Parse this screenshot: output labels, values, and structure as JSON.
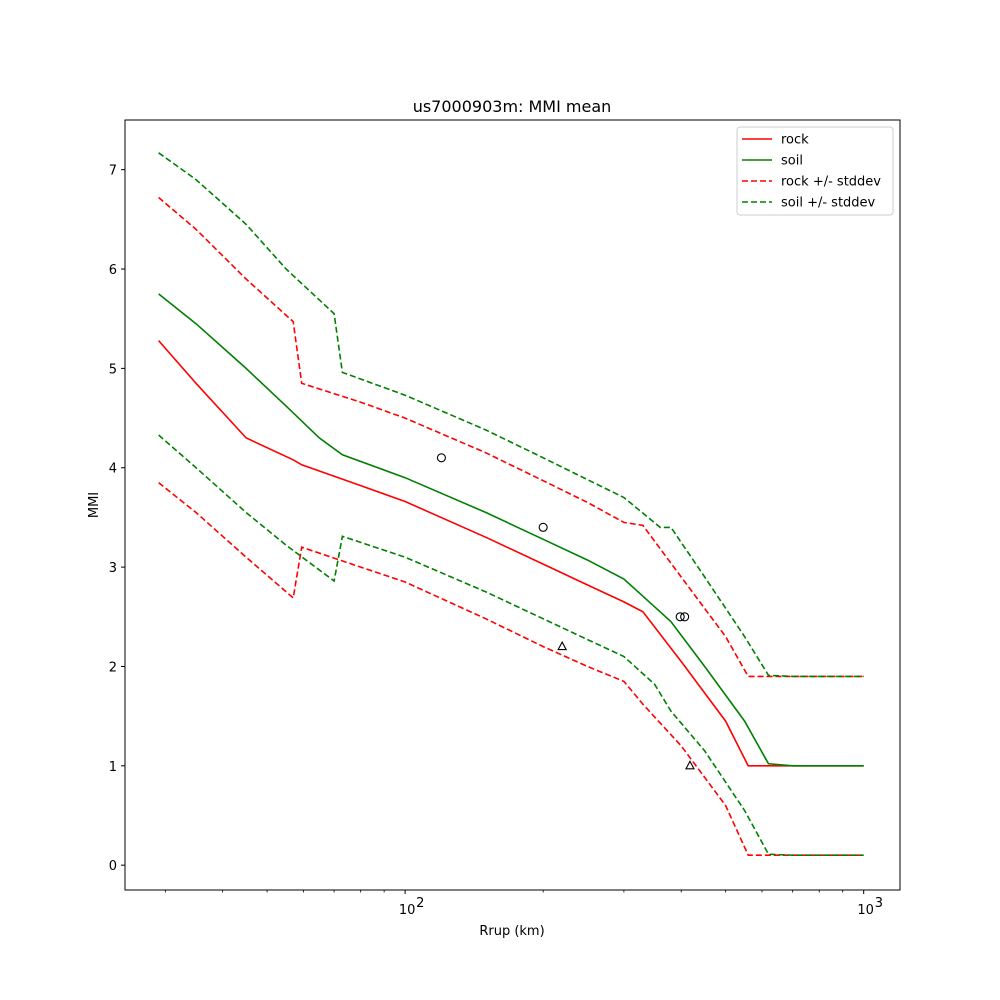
{
  "chart_data": {
    "type": "line",
    "title": "us7000903m: MMI mean",
    "xlabel": "Rrup (km)",
    "ylabel": "MMI",
    "xscale": "log",
    "xlim": [
      24.5,
      1200
    ],
    "ylim": [
      -0.25,
      7.5
    ],
    "x_tick_labels": [
      {
        "base": "10",
        "exp": "2",
        "value": 100
      },
      {
        "base": "10",
        "exp": "3",
        "value": 1000
      }
    ],
    "y_ticks": [
      "0",
      "1",
      "2",
      "3",
      "4",
      "5",
      "6",
      "7"
    ],
    "grid": false,
    "legend_position": "top-right",
    "series": [
      {
        "name": "rock",
        "color": "#ff0000",
        "style": "solid",
        "points": [
          [
            29,
            5.28
          ],
          [
            35,
            4.85
          ],
          [
            45,
            4.3
          ],
          [
            57,
            4.08
          ],
          [
            59.5,
            4.03
          ],
          [
            80,
            3.82
          ],
          [
            100,
            3.66
          ],
          [
            150,
            3.3
          ],
          [
            200,
            3.03
          ],
          [
            250,
            2.82
          ],
          [
            300,
            2.65
          ],
          [
            330,
            2.55
          ],
          [
            400,
            2.05
          ],
          [
            500,
            1.45
          ],
          [
            560,
            1.0
          ],
          [
            700,
            1.0
          ],
          [
            1000,
            1.0
          ]
        ]
      },
      {
        "name": "soil",
        "color": "#008000",
        "style": "solid",
        "points": [
          [
            29,
            5.75
          ],
          [
            35,
            5.45
          ],
          [
            45,
            5.0
          ],
          [
            55,
            4.62
          ],
          [
            65,
            4.3
          ],
          [
            73,
            4.13
          ],
          [
            100,
            3.9
          ],
          [
            150,
            3.55
          ],
          [
            200,
            3.28
          ],
          [
            250,
            3.07
          ],
          [
            300,
            2.88
          ],
          [
            350,
            2.6
          ],
          [
            380,
            2.45
          ],
          [
            450,
            2.0
          ],
          [
            550,
            1.45
          ],
          [
            620,
            1.02
          ],
          [
            700,
            1.0
          ],
          [
            1000,
            1.0
          ]
        ]
      },
      {
        "name": "rock +/- stddev",
        "color": "#ff0000",
        "style": "dashed",
        "points": [
          [
            29,
            6.72
          ],
          [
            35,
            6.4
          ],
          [
            45,
            5.9
          ],
          [
            57,
            5.47
          ],
          [
            59.5,
            4.85
          ],
          [
            80,
            4.66
          ],
          [
            100,
            4.5
          ],
          [
            150,
            4.15
          ],
          [
            200,
            3.87
          ],
          [
            250,
            3.65
          ],
          [
            300,
            3.45
          ],
          [
            330,
            3.42
          ],
          [
            400,
            2.9
          ],
          [
            500,
            2.3
          ],
          [
            560,
            1.9
          ],
          [
            700,
            1.9
          ],
          [
            1000,
            1.9
          ]
        ]
      },
      {
        "name": "soil +/- stddev",
        "color": "#008000",
        "style": "dashed",
        "points": [
          [
            29,
            7.17
          ],
          [
            35,
            6.9
          ],
          [
            45,
            6.45
          ],
          [
            55,
            6.0
          ],
          [
            70,
            5.55
          ],
          [
            73,
            4.96
          ],
          [
            100,
            4.73
          ],
          [
            150,
            4.38
          ],
          [
            200,
            4.1
          ],
          [
            250,
            3.88
          ],
          [
            300,
            3.7
          ],
          [
            360,
            3.4
          ],
          [
            380,
            3.4
          ],
          [
            450,
            2.9
          ],
          [
            550,
            2.3
          ],
          [
            620,
            1.91
          ],
          [
            700,
            1.9
          ],
          [
            1000,
            1.9
          ]
        ]
      },
      {
        "name": "",
        "color": "#ff0000",
        "style": "dashed",
        "points": [
          [
            29,
            3.85
          ],
          [
            35,
            3.55
          ],
          [
            45,
            3.1
          ],
          [
            57,
            2.69
          ],
          [
            59.5,
            3.2
          ],
          [
            80,
            3.0
          ],
          [
            100,
            2.85
          ],
          [
            150,
            2.48
          ],
          [
            200,
            2.2
          ],
          [
            250,
            2.0
          ],
          [
            300,
            1.85
          ],
          [
            330,
            1.62
          ],
          [
            400,
            1.2
          ],
          [
            500,
            0.6
          ],
          [
            560,
            0.1
          ],
          [
            700,
            0.1
          ],
          [
            1000,
            0.1
          ]
        ]
      },
      {
        "name": "",
        "color": "#008000",
        "style": "dashed",
        "points": [
          [
            29,
            4.33
          ],
          [
            35,
            4.0
          ],
          [
            45,
            3.55
          ],
          [
            55,
            3.22
          ],
          [
            70,
            2.86
          ],
          [
            73,
            3.31
          ],
          [
            100,
            3.1
          ],
          [
            150,
            2.75
          ],
          [
            200,
            2.48
          ],
          [
            250,
            2.27
          ],
          [
            300,
            2.1
          ],
          [
            350,
            1.82
          ],
          [
            380,
            1.55
          ],
          [
            450,
            1.15
          ],
          [
            550,
            0.55
          ],
          [
            620,
            0.11
          ],
          [
            700,
            0.1
          ],
          [
            1000,
            0.1
          ]
        ]
      }
    ],
    "observations": [
      {
        "marker": "circle",
        "points": [
          [
            120,
            4.1
          ],
          [
            200,
            3.4
          ],
          [
            398,
            2.5
          ],
          [
            407,
            2.5
          ]
        ]
      },
      {
        "marker": "triangle",
        "points": [
          [
            220,
            2.2
          ],
          [
            418,
            1.0
          ]
        ]
      }
    ]
  }
}
